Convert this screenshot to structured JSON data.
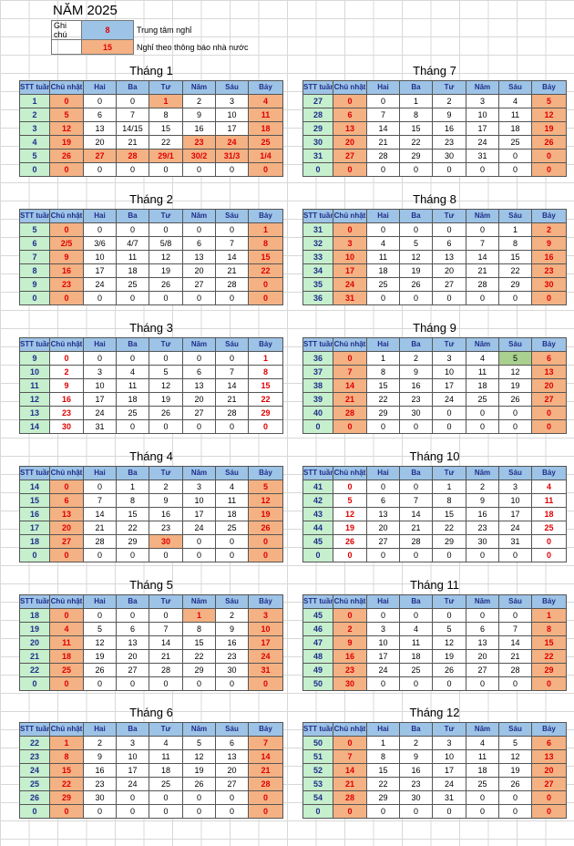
{
  "title": "NĂM 2025",
  "legend": {
    "label": "Ghi chú",
    "items": [
      {
        "value": "8",
        "text": "Trung tâm nghỉ",
        "color": "#9dc3e6"
      },
      {
        "value": "15",
        "text": "Nghỉ theo thông báo nhà nước",
        "color": "#f4b183"
      }
    ]
  },
  "headers": [
    "STT tuần",
    "Chủ nhật",
    "Hai",
    "Ba",
    "Tư",
    "Năm",
    "Sáu",
    "Bảy"
  ],
  "months": [
    {
      "name": "Tháng 1",
      "style": "A",
      "rows": [
        [
          "1",
          "0",
          "0",
          "0",
          "1",
          "2",
          "3",
          "4"
        ],
        [
          "2",
          "5",
          "6",
          "7",
          "8",
          "9",
          "10",
          "11"
        ],
        [
          "3",
          "12",
          "13",
          "14/15",
          "15",
          "16",
          "17",
          "18"
        ],
        [
          "4",
          "19",
          "20",
          "21",
          "22",
          "23",
          "24",
          "25"
        ],
        [
          "5",
          "26",
          "27",
          "28",
          "29/1",
          "30/2",
          "31/3",
          "1/4"
        ],
        [
          "0",
          "0",
          "0",
          "0",
          "0",
          "0",
          "0",
          "0"
        ]
      ],
      "holidays": [
        [
          0,
          4
        ],
        [
          3,
          5
        ],
        [
          3,
          6
        ],
        [
          4,
          2
        ],
        [
          4,
          3
        ],
        [
          4,
          4
        ],
        [
          4,
          5
        ],
        [
          4,
          6
        ]
      ]
    },
    {
      "name": "Tháng 7",
      "style": "A",
      "rows": [
        [
          "27",
          "0",
          "0",
          "1",
          "2",
          "3",
          "4",
          "5"
        ],
        [
          "28",
          "6",
          "7",
          "8",
          "9",
          "10",
          "11",
          "12"
        ],
        [
          "29",
          "13",
          "14",
          "15",
          "16",
          "17",
          "18",
          "19"
        ],
        [
          "30",
          "20",
          "21",
          "22",
          "23",
          "24",
          "25",
          "26"
        ],
        [
          "31",
          "27",
          "28",
          "29",
          "30",
          "31",
          "0",
          "0"
        ],
        [
          "0",
          "0",
          "0",
          "0",
          "0",
          "0",
          "0",
          "0"
        ]
      ],
      "holidays": []
    },
    {
      "name": "Tháng 2",
      "style": "A",
      "rows": [
        [
          "5",
          "0",
          "0",
          "0",
          "0",
          "0",
          "0",
          "1"
        ],
        [
          "6",
          "2/5",
          "3/6",
          "4/7",
          "5/8",
          "6",
          "7",
          "8"
        ],
        [
          "7",
          "9",
          "10",
          "11",
          "12",
          "13",
          "14",
          "15"
        ],
        [
          "8",
          "16",
          "17",
          "18",
          "19",
          "20",
          "21",
          "22"
        ],
        [
          "9",
          "23",
          "24",
          "25",
          "26",
          "27",
          "28",
          "0"
        ],
        [
          "0",
          "0",
          "0",
          "0",
          "0",
          "0",
          "0",
          "0"
        ]
      ],
      "holidays": []
    },
    {
      "name": "Tháng 8",
      "style": "A",
      "rows": [
        [
          "31",
          "0",
          "0",
          "0",
          "0",
          "0",
          "1",
          "2"
        ],
        [
          "32",
          "3",
          "4",
          "5",
          "6",
          "7",
          "8",
          "9"
        ],
        [
          "33",
          "10",
          "11",
          "12",
          "13",
          "14",
          "15",
          "16"
        ],
        [
          "34",
          "17",
          "18",
          "19",
          "20",
          "21",
          "22",
          "23"
        ],
        [
          "35",
          "24",
          "25",
          "26",
          "27",
          "28",
          "29",
          "30"
        ],
        [
          "36",
          "31",
          "0",
          "0",
          "0",
          "0",
          "0",
          "0"
        ]
      ],
      "holidays": []
    },
    {
      "name": "Tháng 3",
      "style": "B",
      "rows": [
        [
          "9",
          "0",
          "0",
          "0",
          "0",
          "0",
          "0",
          "1"
        ],
        [
          "10",
          "2",
          "3",
          "4",
          "5",
          "6",
          "7",
          "8"
        ],
        [
          "11",
          "9",
          "10",
          "11",
          "12",
          "13",
          "14",
          "15"
        ],
        [
          "12",
          "16",
          "17",
          "18",
          "19",
          "20",
          "21",
          "22"
        ],
        [
          "13",
          "23",
          "24",
          "25",
          "26",
          "27",
          "28",
          "29"
        ],
        [
          "14",
          "30",
          "31",
          "0",
          "0",
          "0",
          "0",
          "0"
        ]
      ],
      "holidays": []
    },
    {
      "name": "Tháng 9",
      "style": "A",
      "rows": [
        [
          "36",
          "0",
          "1",
          "2",
          "3",
          "4",
          "5",
          "6"
        ],
        [
          "37",
          "7",
          "8",
          "9",
          "10",
          "11",
          "12",
          "13"
        ],
        [
          "38",
          "14",
          "15",
          "16",
          "17",
          "18",
          "19",
          "20"
        ],
        [
          "39",
          "21",
          "22",
          "23",
          "24",
          "25",
          "26",
          "27"
        ],
        [
          "40",
          "28",
          "29",
          "30",
          "0",
          "0",
          "0",
          "0"
        ],
        [
          "0",
          "0",
          "0",
          "0",
          "0",
          "0",
          "0",
          "0"
        ]
      ],
      "holidays": [],
      "green": [
        [
          0,
          6
        ]
      ]
    },
    {
      "name": "Tháng 4",
      "style": "A",
      "rows": [
        [
          "14",
          "0",
          "0",
          "1",
          "2",
          "3",
          "4",
          "5"
        ],
        [
          "15",
          "6",
          "7",
          "8",
          "9",
          "10",
          "11",
          "12"
        ],
        [
          "16",
          "13",
          "14",
          "15",
          "16",
          "17",
          "18",
          "19"
        ],
        [
          "17",
          "20",
          "21",
          "22",
          "23",
          "24",
          "25",
          "26"
        ],
        [
          "18",
          "27",
          "28",
          "29",
          "30",
          "0",
          "0",
          "0"
        ],
        [
          "0",
          "0",
          "0",
          "0",
          "0",
          "0",
          "0",
          "0"
        ]
      ],
      "holidays": [
        [
          4,
          4
        ]
      ]
    },
    {
      "name": "Tháng 10",
      "style": "B",
      "rows": [
        [
          "41",
          "0",
          "0",
          "0",
          "1",
          "2",
          "3",
          "4"
        ],
        [
          "42",
          "5",
          "6",
          "7",
          "8",
          "9",
          "10",
          "11"
        ],
        [
          "43",
          "12",
          "13",
          "14",
          "15",
          "16",
          "17",
          "18"
        ],
        [
          "44",
          "19",
          "20",
          "21",
          "22",
          "23",
          "24",
          "25"
        ],
        [
          "45",
          "26",
          "27",
          "28",
          "29",
          "30",
          "31",
          "0"
        ],
        [
          "0",
          "0",
          "0",
          "0",
          "0",
          "0",
          "0",
          "0"
        ]
      ],
      "holidays": []
    },
    {
      "name": "Tháng 5",
      "style": "A",
      "rows": [
        [
          "18",
          "0",
          "0",
          "0",
          "0",
          "1",
          "2",
          "3"
        ],
        [
          "19",
          "4",
          "5",
          "6",
          "7",
          "8",
          "9",
          "10"
        ],
        [
          "20",
          "11",
          "12",
          "13",
          "14",
          "15",
          "16",
          "17"
        ],
        [
          "21",
          "18",
          "19",
          "20",
          "21",
          "22",
          "23",
          "24"
        ],
        [
          "22",
          "25",
          "26",
          "27",
          "28",
          "29",
          "30",
          "31"
        ],
        [
          "0",
          "0",
          "0",
          "0",
          "0",
          "0",
          "0",
          "0"
        ]
      ],
      "holidays": [
        [
          0,
          5
        ]
      ]
    },
    {
      "name": "Tháng 11",
      "style": "A",
      "rows": [
        [
          "45",
          "0",
          "0",
          "0",
          "0",
          "0",
          "0",
          "1"
        ],
        [
          "46",
          "2",
          "3",
          "4",
          "5",
          "6",
          "7",
          "8"
        ],
        [
          "47",
          "9",
          "10",
          "11",
          "12",
          "13",
          "14",
          "15"
        ],
        [
          "48",
          "16",
          "17",
          "18",
          "19",
          "20",
          "21",
          "22"
        ],
        [
          "49",
          "23",
          "24",
          "25",
          "26",
          "27",
          "28",
          "29"
        ],
        [
          "50",
          "30",
          "0",
          "0",
          "0",
          "0",
          "0",
          "0"
        ]
      ],
      "holidays": []
    },
    {
      "name": "Tháng 6",
      "style": "A",
      "rows": [
        [
          "22",
          "1",
          "2",
          "3",
          "4",
          "5",
          "6",
          "7"
        ],
        [
          "23",
          "8",
          "9",
          "10",
          "11",
          "12",
          "13",
          "14"
        ],
        [
          "24",
          "15",
          "16",
          "17",
          "18",
          "19",
          "20",
          "21"
        ],
        [
          "25",
          "22",
          "23",
          "24",
          "25",
          "26",
          "27",
          "28"
        ],
        [
          "26",
          "29",
          "30",
          "0",
          "0",
          "0",
          "0",
          "0"
        ],
        [
          "0",
          "0",
          "0",
          "0",
          "0",
          "0",
          "0",
          "0"
        ]
      ],
      "holidays": []
    },
    {
      "name": "Tháng 12",
      "style": "A",
      "rows": [
        [
          "50",
          "0",
          "1",
          "2",
          "3",
          "4",
          "5",
          "6"
        ],
        [
          "51",
          "7",
          "8",
          "9",
          "10",
          "11",
          "12",
          "13"
        ],
        [
          "52",
          "14",
          "15",
          "16",
          "17",
          "18",
          "19",
          "20"
        ],
        [
          "53",
          "21",
          "22",
          "23",
          "24",
          "25",
          "26",
          "27"
        ],
        [
          "54",
          "28",
          "29",
          "30",
          "31",
          "0",
          "0",
          "0"
        ],
        [
          "0",
          "0",
          "0",
          "0",
          "0",
          "0",
          "0",
          "0"
        ]
      ],
      "holidays": []
    }
  ]
}
